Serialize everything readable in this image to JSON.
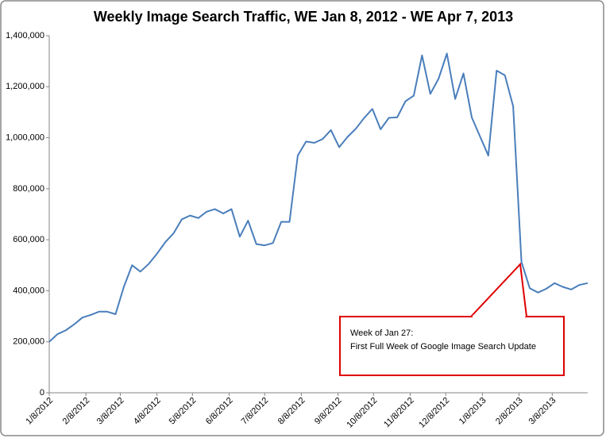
{
  "chart_data": {
    "type": "line",
    "title": "Weekly Image Search Traffic, WE Jan 8, 2012 - WE Apr 7, 2013",
    "x": [
      "2012-01-08",
      "2012-01-15",
      "2012-01-22",
      "2012-01-29",
      "2012-02-05",
      "2012-02-12",
      "2012-02-19",
      "2012-02-26",
      "2012-03-04",
      "2012-03-11",
      "2012-03-18",
      "2012-03-25",
      "2012-04-01",
      "2012-04-08",
      "2012-04-15",
      "2012-04-22",
      "2012-04-29",
      "2012-05-06",
      "2012-05-13",
      "2012-05-20",
      "2012-05-27",
      "2012-06-03",
      "2012-06-10",
      "2012-06-17",
      "2012-06-24",
      "2012-07-01",
      "2012-07-08",
      "2012-07-15",
      "2012-07-22",
      "2012-07-29",
      "2012-08-05",
      "2012-08-12",
      "2012-08-19",
      "2012-08-26",
      "2012-09-02",
      "2012-09-09",
      "2012-09-16",
      "2012-09-23",
      "2012-09-30",
      "2012-10-07",
      "2012-10-14",
      "2012-10-21",
      "2012-10-28",
      "2012-11-04",
      "2012-11-11",
      "2012-11-18",
      "2012-11-25",
      "2012-12-02",
      "2012-12-09",
      "2012-12-16",
      "2012-12-23",
      "2012-12-30",
      "2013-01-06",
      "2013-01-13",
      "2013-01-20",
      "2013-01-27",
      "2013-02-03",
      "2013-02-10",
      "2013-02-17",
      "2013-02-24",
      "2013-03-03",
      "2013-03-10",
      "2013-03-17",
      "2013-03-24",
      "2013-03-31",
      "2013-04-07"
    ],
    "series": [
      {
        "name": "Weekly Image Search Traffic",
        "color": "#4a7ebb",
        "values": [
          200000,
          230000,
          245000,
          268000,
          295000,
          305000,
          318000,
          318000,
          308000,
          415000,
          500000,
          475000,
          505000,
          545000,
          590000,
          625000,
          680000,
          695000,
          685000,
          710000,
          720000,
          703000,
          720000,
          612000,
          675000,
          583000,
          578000,
          587000,
          670000,
          670000,
          930000,
          985000,
          980000,
          995000,
          1030000,
          963000,
          1003000,
          1035000,
          1077000,
          1113000,
          1033000,
          1078000,
          1080000,
          1143000,
          1165000,
          1323000,
          1172000,
          1232000,
          1330000,
          1152000,
          1252000,
          1080000,
          1005000,
          930000,
          1263000,
          1245000,
          1123000,
          513000,
          410000,
          393000,
          408000,
          430000,
          415000,
          405000,
          423000,
          430000
        ]
      }
    ],
    "xlim": [
      "2012-01-08",
      "2013-04-07"
    ],
    "xticks": [
      {
        "value": "2012-01-08",
        "label": "1/8/2012"
      },
      {
        "value": "2012-02-08",
        "label": "2/8/2012"
      },
      {
        "value": "2012-03-08",
        "label": "3/8/2012"
      },
      {
        "value": "2012-04-08",
        "label": "4/8/2012"
      },
      {
        "value": "2012-05-08",
        "label": "5/8/2012"
      },
      {
        "value": "2012-06-08",
        "label": "6/8/2012"
      },
      {
        "value": "2012-07-08",
        "label": "7/8/2012"
      },
      {
        "value": "2012-08-08",
        "label": "8/8/2012"
      },
      {
        "value": "2012-09-08",
        "label": "9/8/2012"
      },
      {
        "value": "2012-10-08",
        "label": "10/8/2012"
      },
      {
        "value": "2012-11-08",
        "label": "11/8/2012"
      },
      {
        "value": "2012-12-08",
        "label": "12/8/2012"
      },
      {
        "value": "2013-01-08",
        "label": "1/8/2013"
      },
      {
        "value": "2013-02-08",
        "label": "2/8/2013"
      },
      {
        "value": "2013-03-08",
        "label": "3/8/2013"
      }
    ],
    "ylim": [
      0,
      1400000
    ],
    "yticks": [
      0,
      {
        "value": 200000,
        "label": "200,000"
      },
      {
        "value": 400000,
        "label": "400,000"
      },
      {
        "value": 600000,
        "label": "600,000"
      },
      {
        "value": 800000,
        "label": "800,000"
      },
      {
        "value": 1000000,
        "label": "1,000,000"
      },
      {
        "value": 1200000,
        "label": "1,200,000"
      },
      {
        "value": 1400000,
        "label": "1,400,000"
      }
    ],
    "grid": false,
    "annotation": [
      "Week of Jan 27:",
      "First Full Week of Google Image Search Update"
    ]
  }
}
